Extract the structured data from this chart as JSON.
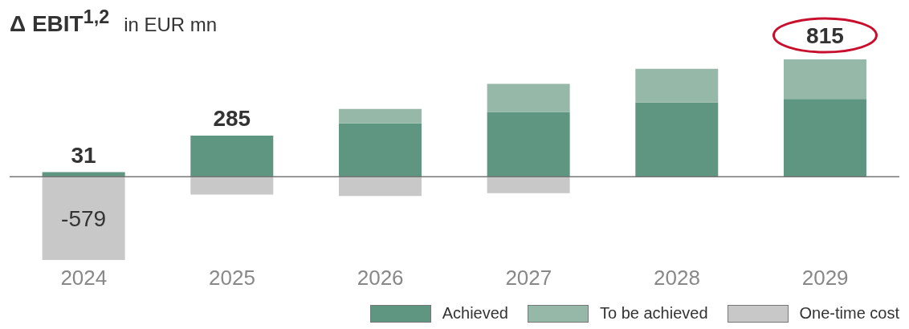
{
  "chart_data": {
    "type": "bar",
    "title": "Δ EBIT$^{1,2}$",
    "subtitle": "in EUR mn",
    "categories": [
      "2024",
      "2025",
      "2026",
      "2027",
      "2028",
      "2029"
    ],
    "stacked": true,
    "legend": "bottom right",
    "series": [
      {
        "name": "Achieved",
        "color": "#5e9682",
        "values": [
          31,
          285,
          370,
          450,
          515,
          540
        ],
        "value_labels": [
          "31",
          "285",
          null,
          null,
          null,
          null
        ]
      },
      {
        "name": "To be achieved",
        "color": "#95b8a9",
        "values": [
          0,
          0,
          100,
          195,
          235,
          275
        ]
      },
      {
        "name": "One-time cost",
        "color": "#c8c8c8",
        "values": [
          -579,
          -125,
          -135,
          -115,
          0,
          0
        ],
        "value_labels": [
          "-579",
          null,
          null,
          null,
          null,
          null
        ]
      }
    ],
    "totals": [
      null,
      null,
      null,
      null,
      null,
      "815"
    ]
  }
}
